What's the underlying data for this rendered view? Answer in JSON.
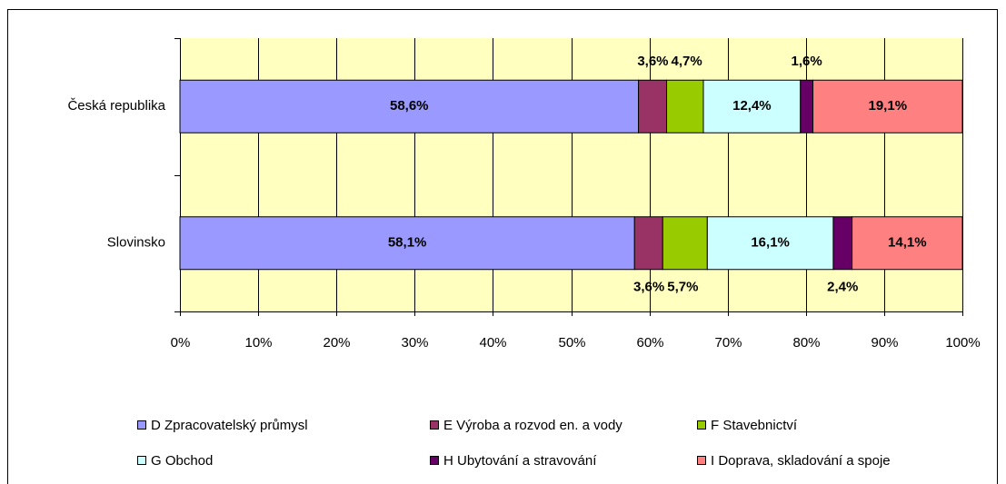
{
  "chart_data": {
    "type": "stacked-bar-horizontal",
    "categories": [
      "Česká republika",
      "Slovinsko"
    ],
    "series": [
      {
        "name": "D  Zpracovatelský průmysl",
        "color": "#9999ff",
        "values": [
          58.6,
          58.1
        ],
        "value_labels": [
          "58,6%",
          "58,1%"
        ]
      },
      {
        "name": "E  Výroba a rozvod en. a vody",
        "color": "#993366",
        "values": [
          3.6,
          3.6
        ],
        "value_labels": [
          "3,6%",
          "3,6%"
        ]
      },
      {
        "name": "F  Stavebnictví",
        "color": "#99cc00",
        "values": [
          4.7,
          5.7
        ],
        "value_labels": [
          "4,7%",
          "5,7%"
        ]
      },
      {
        "name": "G  Obchod",
        "color": "#ccffff",
        "values": [
          12.4,
          16.1
        ],
        "value_labels": [
          "12,4%",
          "16,1%"
        ]
      },
      {
        "name": "H  Ubytování a stravování",
        "color": "#660066",
        "values": [
          1.6,
          2.4
        ],
        "value_labels": [
          "1,6%",
          "2,4%"
        ]
      },
      {
        "name": "I   Doprava, skladování a spoje",
        "color": "#ff8080",
        "values": [
          19.1,
          14.1
        ],
        "value_labels": [
          "19,1%",
          "14,1%"
        ]
      }
    ],
    "xlim": [
      0,
      100
    ],
    "xticks": [
      {
        "value": 0,
        "label": "0%"
      },
      {
        "value": 10,
        "label": "10%"
      },
      {
        "value": 20,
        "label": "20%"
      },
      {
        "value": 30,
        "label": "30%"
      },
      {
        "value": 40,
        "label": "40%"
      },
      {
        "value": 50,
        "label": "50%"
      },
      {
        "value": 60,
        "label": "60%"
      },
      {
        "value": 70,
        "label": "70%"
      },
      {
        "value": 80,
        "label": "80%"
      },
      {
        "value": 90,
        "label": "90%"
      },
      {
        "value": 100,
        "label": "100%"
      }
    ],
    "grid": true,
    "legend": "bottom"
  }
}
